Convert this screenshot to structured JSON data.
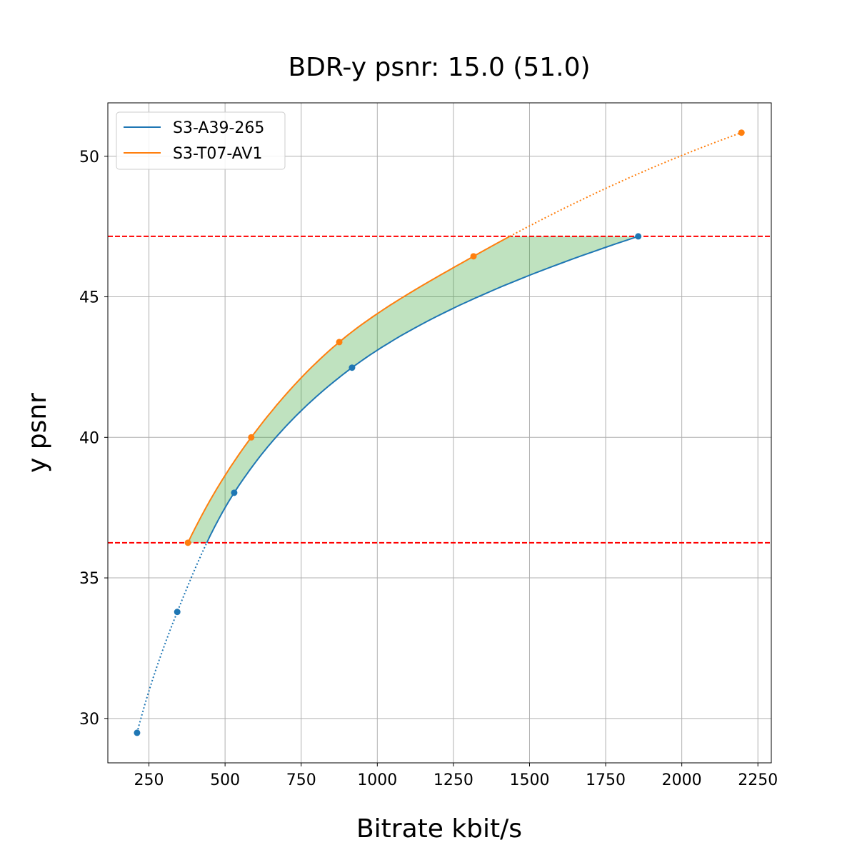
{
  "chart_data": {
    "type": "line",
    "title": "BDR-y psnr: 15.0 (51.0)",
    "xlabel": "Bitrate kbit/s",
    "ylabel": "y psnr",
    "xlim": [
      115,
      2294
    ],
    "ylim": [
      28.42,
      51.9
    ],
    "xticks": [
      250,
      500,
      750,
      1000,
      1250,
      1500,
      1750,
      2000,
      2250
    ],
    "yticks": [
      30,
      35,
      40,
      45,
      50
    ],
    "grid": true,
    "legend_position": "top-left",
    "series": [
      {
        "name": "S3-A39-265",
        "color": "#1f77b4",
        "x": [
          211,
          343,
          530,
          917,
          1857
        ],
        "y": [
          29.49,
          33.79,
          38.03,
          42.48,
          47.15
        ]
      },
      {
        "name": "S3-T07-AV1",
        "color": "#ff7f0e",
        "x": [
          378,
          586,
          875,
          1316,
          2196
        ],
        "y": [
          36.25,
          40.0,
          43.39,
          46.44,
          50.84
        ]
      }
    ],
    "hlines": [
      {
        "y": 47.15,
        "color": "#ff0000",
        "style": "dashed"
      },
      {
        "y": 36.25,
        "color": "#ff0000",
        "style": "dashed"
      }
    ],
    "fill_between": {
      "ymin": 36.25,
      "ymax": 47.15,
      "color": "#2ca02c"
    }
  }
}
